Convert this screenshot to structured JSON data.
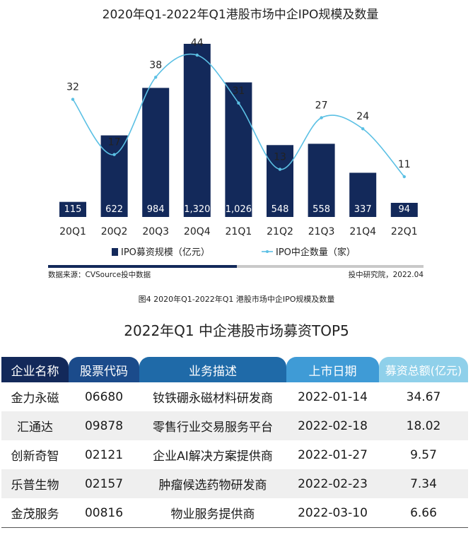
{
  "chart_data": {
    "type": "bar",
    "title": "2020年Q1-2022年Q1港股市场中企IPO规模及数量",
    "categories": [
      "20Q1",
      "20Q2",
      "20Q3",
      "20Q4",
      "21Q1",
      "21Q2",
      "21Q3",
      "21Q4",
      "22Q1"
    ],
    "series": [
      {
        "name": "IPO募资规模（亿元）",
        "kind": "bar",
        "values": [
          115,
          622,
          984,
          1320,
          1026,
          548,
          558,
          337,
          94
        ],
        "labels": [
          "115",
          "622",
          "984",
          "1,320",
          "1,026",
          "548",
          "558",
          "337",
          "94"
        ]
      },
      {
        "name": "IPO中企数量（家）",
        "kind": "line",
        "values": [
          32,
          17,
          38,
          44,
          31,
          13,
          27,
          24,
          11
        ]
      }
    ],
    "legend_position": "bottom",
    "grid": false,
    "colors": {
      "bar": "#13295a",
      "line": "#5bc0e4"
    }
  },
  "source_note": "数据来源：CVSource投中数据",
  "credit_note": "投中研究院，2022.04",
  "figure_caption": "图4 2020年Q1-2022年Q1 港股市场中企IPO规模及数量",
  "table": {
    "title": "2022年Q1 中企港股市场募资TOP5",
    "headers": [
      "企业名称",
      "股票代码",
      "业务描述",
      "上市日期",
      "募资总额(亿元)"
    ],
    "rows": [
      [
        "金力永磁",
        "06680",
        "钕铁硼永磁材料研发商",
        "2022-01-14",
        "34.67"
      ],
      [
        "汇通达",
        "09878",
        "零售行业交易服务平台",
        "2022-02-18",
        "18.02"
      ],
      [
        "创新奇智",
        "02121",
        "企业AI解决方案提供商",
        "2022-01-27",
        "9.57"
      ],
      [
        "乐普生物",
        "02157",
        "肿瘤候选药物研发商",
        "2022-02-23",
        "7.34"
      ],
      [
        "金茂服务",
        "00816",
        "物业服务提供商",
        "2022-03-10",
        "6.66"
      ]
    ]
  }
}
